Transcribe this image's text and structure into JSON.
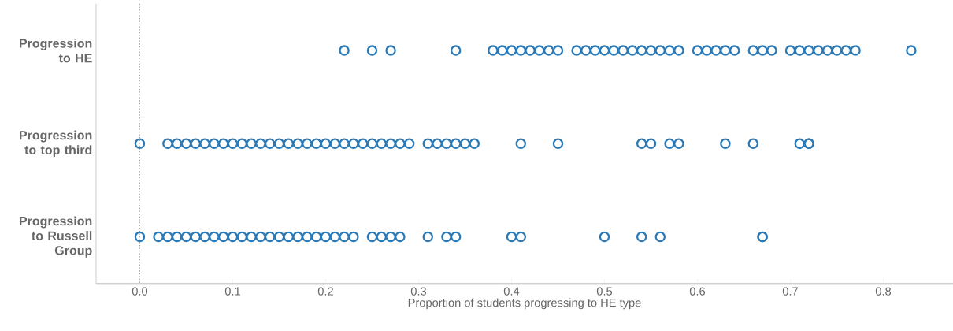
{
  "chart_data": {
    "type": "scatter",
    "orientation": "horizontal",
    "xlabel": "Proportion of students progressing to HE type",
    "categories": [
      "Progression to HE",
      "Progression to top third",
      "Progression to Russell Group"
    ],
    "xlim": [
      -0.047,
      0.875
    ],
    "xticks": [
      {
        "value": 0,
        "label": "0.0"
      },
      0.1,
      0.2,
      0.3,
      0.4,
      0.5,
      0.6,
      0.7,
      0.8
    ],
    "marker": "circle",
    "grid": false,
    "ref_lines": [
      {
        "axis": "x",
        "value": 0,
        "line_style": "dotted",
        "color": "#808080"
      }
    ],
    "series": [
      {
        "color": "#2a7ab8",
        "x": [
          "Progression to HE",
          "Progression to HE",
          "Progression to HE",
          "Progression to HE",
          "Progression to HE",
          "Progression to HE",
          "Progression to HE",
          "Progression to HE",
          "Progression to HE",
          "Progression to HE",
          "Progression to HE",
          "Progression to HE",
          "Progression to HE",
          "Progression to HE",
          "Progression to HE",
          "Progression to HE",
          "Progression to HE",
          "Progression to HE",
          "Progression to HE",
          "Progression to HE",
          "Progression to HE",
          "Progression to HE",
          "Progression to HE",
          "Progression to HE",
          "Progression to HE",
          "Progression to HE",
          "Progression to HE",
          "Progression to HE",
          "Progression to HE",
          "Progression to HE",
          "Progression to HE",
          "Progression to HE",
          "Progression to HE",
          "Progression to HE",
          "Progression to HE",
          "Progression to HE",
          "Progression to HE",
          "Progression to HE",
          "Progression to HE",
          "Progression to HE",
          "Progression to HE"
        ],
        "values": [
          0.22,
          0.25,
          0.27,
          0.34,
          0.38,
          0.39,
          0.4,
          0.41,
          0.42,
          0.43,
          0.44,
          0.45,
          0.47,
          0.48,
          0.49,
          0.5,
          0.51,
          0.52,
          0.53,
          0.54,
          0.55,
          0.56,
          0.57,
          0.58,
          0.6,
          0.61,
          0.62,
          0.63,
          0.64,
          0.66,
          0.67,
          0.68,
          0.7,
          0.71,
          0.72,
          0.73,
          0.74,
          0.75,
          0.76,
          0.77,
          0.83
        ]
      },
      {
        "color": "#2a7ab8",
        "x": [
          "Progression to top third",
          "Progression to top third",
          "Progression to top third",
          "Progression to top third",
          "Progression to top third",
          "Progression to top third",
          "Progression to top third",
          "Progression to top third",
          "Progression to top third",
          "Progression to top third",
          "Progression to top third",
          "Progression to top third",
          "Progression to top third",
          "Progression to top third",
          "Progression to top third",
          "Progression to top third",
          "Progression to top third",
          "Progression to top third",
          "Progression to top third",
          "Progression to top third",
          "Progression to top third",
          "Progression to top third",
          "Progression to top third",
          "Progression to top third",
          "Progression to top third",
          "Progression to top third",
          "Progression to top third",
          "Progression to top third",
          "Progression to top third",
          "Progression to top third",
          "Progression to top third",
          "Progression to top third",
          "Progression to top third",
          "Progression to top third",
          "Progression to top third",
          "Progression to top third",
          "Progression to top third",
          "Progression to top third",
          "Progression to top third",
          "Progression to top third",
          "Progression to top third",
          "Progression to top third",
          "Progression to top third",
          "Progression to top third",
          "Progression to top third"
        ],
        "values": [
          0.0,
          0.03,
          0.04,
          0.05,
          0.06,
          0.07,
          0.08,
          0.09,
          0.1,
          0.11,
          0.12,
          0.13,
          0.14,
          0.15,
          0.16,
          0.17,
          0.18,
          0.19,
          0.2,
          0.21,
          0.22,
          0.23,
          0.24,
          0.25,
          0.26,
          0.27,
          0.28,
          0.29,
          0.31,
          0.32,
          0.33,
          0.34,
          0.35,
          0.36,
          0.41,
          0.45,
          0.54,
          0.55,
          0.57,
          0.58,
          0.63,
          0.66,
          0.71,
          0.72,
          0.72
        ]
      },
      {
        "color": "#2a7ab8",
        "x": [
          "Progression to Russell Group",
          "Progression to Russell Group",
          "Progression to Russell Group",
          "Progression to Russell Group",
          "Progression to Russell Group",
          "Progression to Russell Group",
          "Progression to Russell Group",
          "Progression to Russell Group",
          "Progression to Russell Group",
          "Progression to Russell Group",
          "Progression to Russell Group",
          "Progression to Russell Group",
          "Progression to Russell Group",
          "Progression to Russell Group",
          "Progression to Russell Group",
          "Progression to Russell Group",
          "Progression to Russell Group",
          "Progression to Russell Group",
          "Progression to Russell Group",
          "Progression to Russell Group",
          "Progression to Russell Group",
          "Progression to Russell Group",
          "Progression to Russell Group",
          "Progression to Russell Group",
          "Progression to Russell Group",
          "Progression to Russell Group",
          "Progression to Russell Group",
          "Progression to Russell Group",
          "Progression to Russell Group",
          "Progression to Russell Group",
          "Progression to Russell Group",
          "Progression to Russell Group",
          "Progression to Russell Group",
          "Progression to Russell Group",
          "Progression to Russell Group",
          "Progression to Russell Group",
          "Progression to Russell Group"
        ],
        "values": [
          0.0,
          0.02,
          0.03,
          0.04,
          0.05,
          0.06,
          0.07,
          0.08,
          0.09,
          0.1,
          0.11,
          0.12,
          0.13,
          0.14,
          0.15,
          0.16,
          0.17,
          0.18,
          0.19,
          0.2,
          0.21,
          0.22,
          0.23,
          0.25,
          0.26,
          0.27,
          0.28,
          0.31,
          0.33,
          0.34,
          0.4,
          0.41,
          0.5,
          0.54,
          0.56,
          0.67,
          0.67
        ]
      }
    ]
  }
}
